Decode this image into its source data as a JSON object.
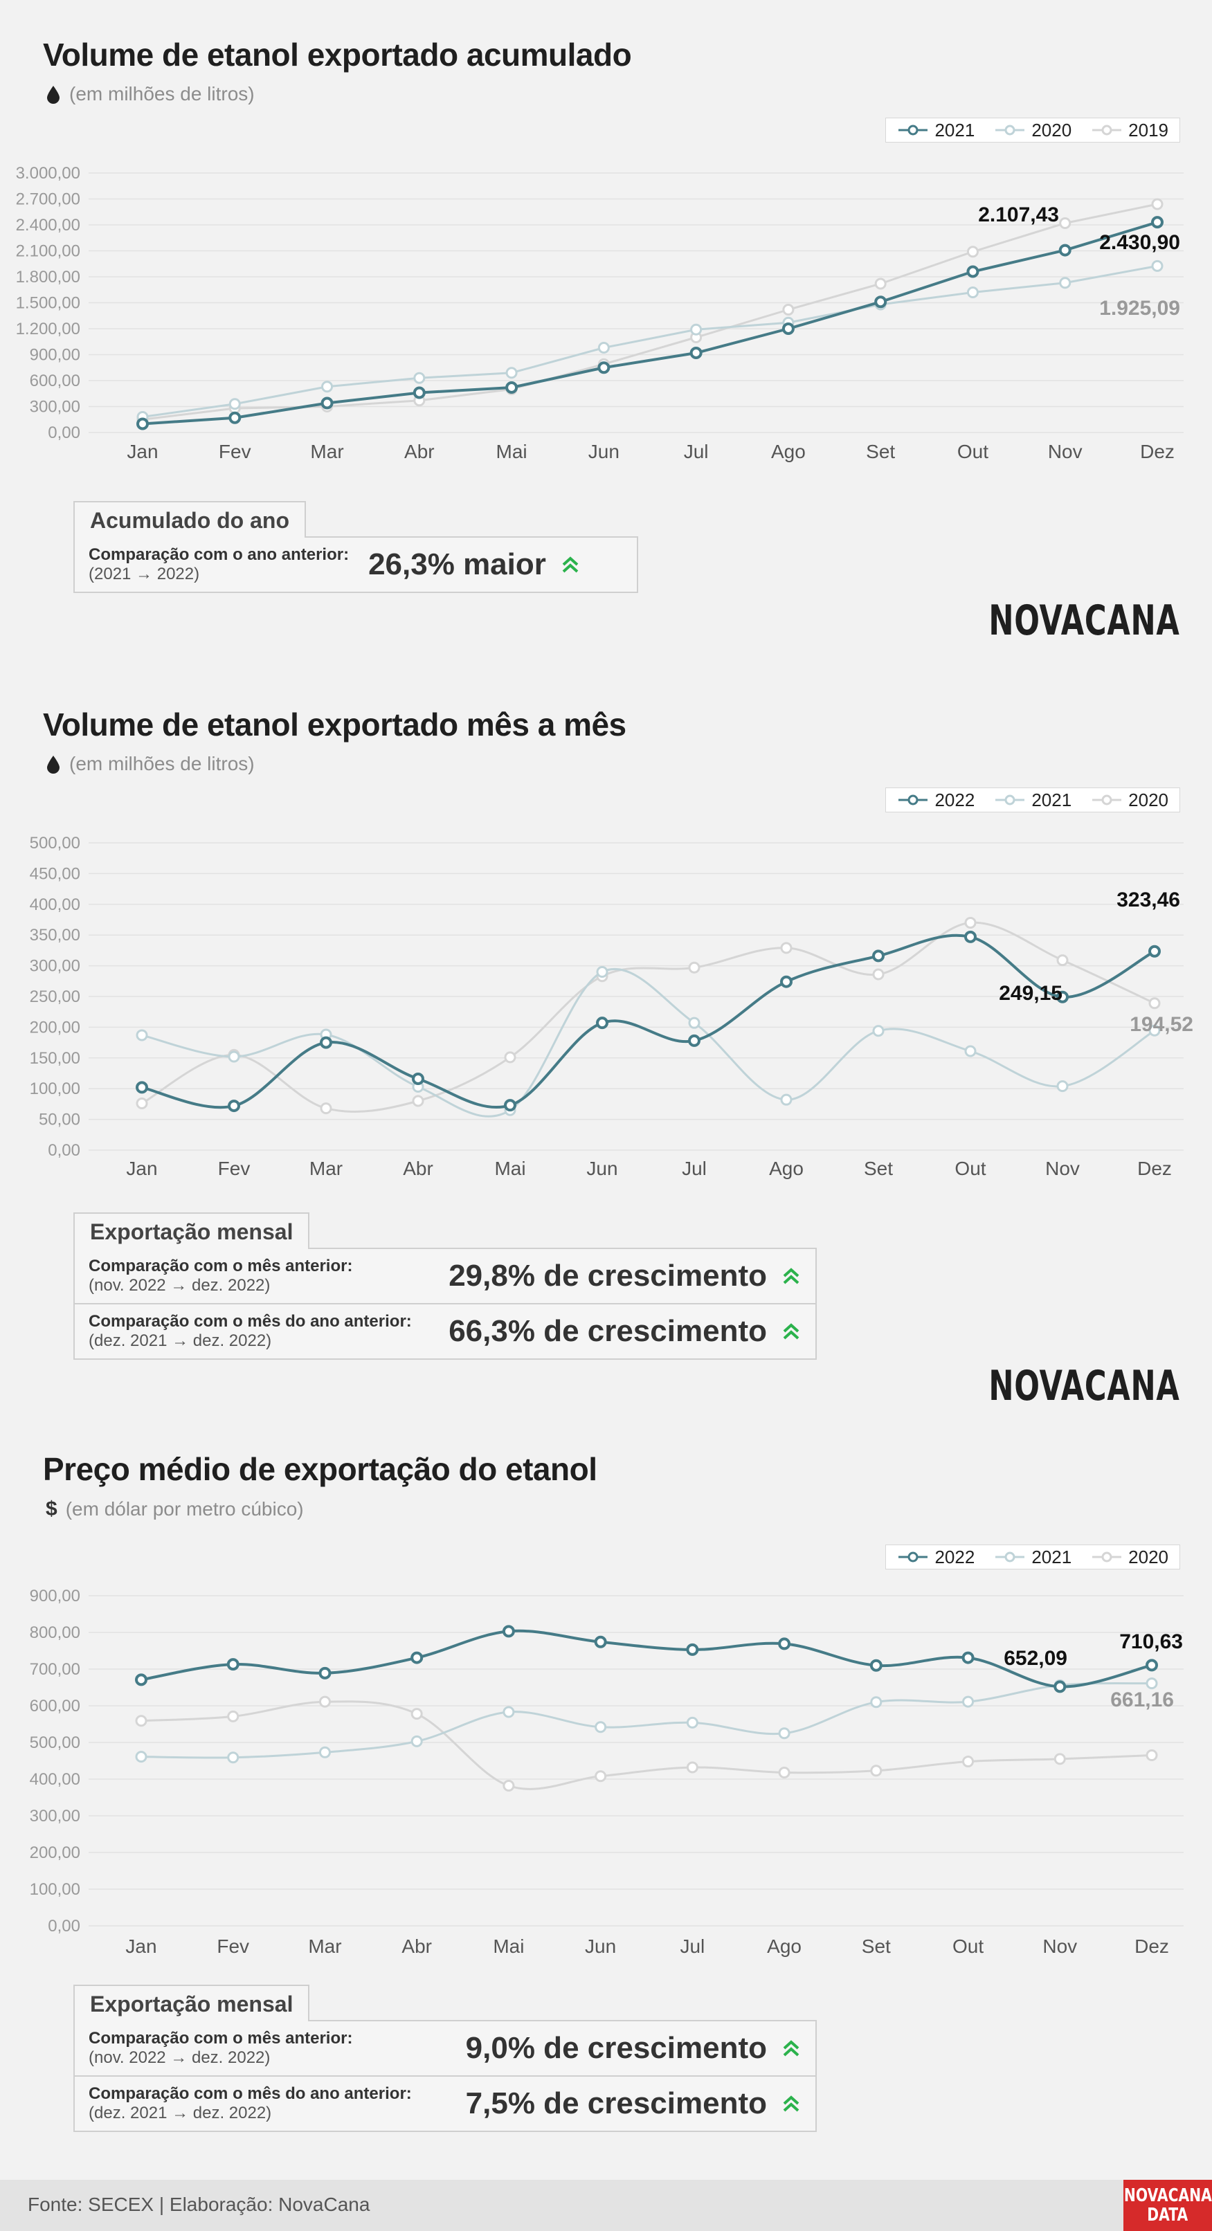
{
  "sections": [
    {
      "title": "Volume de etanol exportado acumulado",
      "subtitle": "(em milhões de litros)",
      "icon": "drop-icon",
      "box": {
        "tab": "Acumulado do ano",
        "rows": [
          {
            "label": "Comparação com o ano anterior:",
            "period": "(2021 → 2022)",
            "value": "26,3% maior"
          }
        ]
      },
      "brand": "NOVACANA"
    },
    {
      "title": "Volume de etanol exportado mês a mês",
      "subtitle": "(em milhões de litros)",
      "icon": "drop-icon",
      "box": {
        "tab": "Exportação mensal",
        "rows": [
          {
            "label": "Comparação com o mês anterior:",
            "period": "(nov. 2022 → dez. 2022)",
            "value": "29,8% de crescimento"
          },
          {
            "label": "Comparação com o mês do ano anterior:",
            "period": "(dez. 2021 → dez. 2022)",
            "value": "66,3% de crescimento"
          }
        ]
      },
      "brand": "NOVACANA"
    },
    {
      "title": "Preço médio de exportação do etanol",
      "subtitle": "(em dólar por metro cúbico)",
      "icon": "$",
      "box": {
        "tab": "Exportação mensal",
        "rows": [
          {
            "label": "Comparação com o mês anterior:",
            "period": "(nov. 2022 → dez. 2022)",
            "value": "9,0% de crescimento"
          },
          {
            "label": "Comparação com o mês do ano anterior:",
            "period": "(dez. 2021 → dez. 2022)",
            "value": "7,5% de crescimento"
          }
        ]
      }
    }
  ],
  "footer": {
    "source": "Fonte: SECEX | Elaboração: NovaCana",
    "logo_line1": "NOVACANA",
    "logo_line2": "DATA"
  },
  "colors": {
    "primary": "#457b87",
    "secondary": "#bfd3d8",
    "tertiary": "#d5d5d5",
    "arrow_up": "#2bb24c"
  },
  "chart_data": [
    {
      "type": "line",
      "categories": [
        "Jan",
        "Fev",
        "Mar",
        "Abr",
        "Mai",
        "Jun",
        "Jul",
        "Ago",
        "Set",
        "Out",
        "Nov",
        "Dez"
      ],
      "ylim": [
        0,
        3000
      ],
      "yticks": [
        "0,00",
        "300,00",
        "600,00",
        "900,00",
        "1.200,00",
        "1.500,00",
        "1.800,00",
        "2.100,00",
        "2.400,00",
        "2.700,00",
        "3.000,00"
      ],
      "legend": [
        "2021",
        "2020",
        "2019"
      ],
      "series": [
        {
          "name": "2021",
          "values": [
            100,
            170,
            340,
            460,
            520,
            750,
            920,
            1200,
            1510,
            1860,
            2107.43,
            2430.9
          ]
        },
        {
          "name": "2020",
          "values": [
            180,
            330,
            530,
            630,
            690,
            980,
            1190,
            1270,
            1480,
            1620,
            1730,
            1925.09
          ]
        },
        {
          "name": "2019",
          "values": [
            150,
            280,
            300,
            370,
            500,
            790,
            1100,
            1420,
            1720,
            2090,
            2420,
            2640
          ]
        }
      ],
      "labels": [
        "2.107,43",
        "2.430,90",
        "1.925,09"
      ]
    },
    {
      "type": "line",
      "categories": [
        "Jan",
        "Fev",
        "Mar",
        "Abr",
        "Mai",
        "Jun",
        "Jul",
        "Ago",
        "Set",
        "Out",
        "Nov",
        "Dez"
      ],
      "ylim": [
        0,
        500
      ],
      "yticks": [
        "0,00",
        "50,00",
        "100,00",
        "150,00",
        "200,00",
        "250,00",
        "300,00",
        "350,00",
        "400,00",
        "450,00",
        "500,00"
      ],
      "legend": [
        "2022",
        "2021",
        "2020"
      ],
      "series": [
        {
          "name": "2022",
          "values": [
            102,
            72,
            175,
            116,
            73,
            207,
            178,
            274,
            316,
            347,
            249.15,
            323.46
          ]
        },
        {
          "name": "2021",
          "values": [
            187,
            152,
            188,
            103,
            65,
            290,
            207,
            82,
            194,
            161,
            104,
            194.52
          ]
        },
        {
          "name": "2020",
          "values": [
            76,
            155,
            68,
            80,
            151,
            283,
            297,
            329,
            286,
            370,
            309,
            239
          ]
        }
      ],
      "labels": [
        "323,46",
        "249,15",
        "194,52"
      ]
    },
    {
      "type": "line",
      "categories": [
        "Jan",
        "Fev",
        "Mar",
        "Abr",
        "Mai",
        "Jun",
        "Jul",
        "Ago",
        "Set",
        "Out",
        "Nov",
        "Dez"
      ],
      "ylim": [
        0,
        900
      ],
      "yticks": [
        "0,00",
        "100,00",
        "200,00",
        "300,00",
        "400,00",
        "500,00",
        "600,00",
        "700,00",
        "800,00",
        "900,00"
      ],
      "legend": [
        "2022",
        "2021",
        "2020"
      ],
      "series": [
        {
          "name": "2022",
          "values": [
            671,
            713,
            689,
            731,
            803,
            774,
            753,
            769,
            710,
            731,
            652.09,
            710.63
          ]
        },
        {
          "name": "2021",
          "values": [
            461,
            459,
            473,
            503,
            583,
            542,
            554,
            525,
            610,
            611,
            656,
            661.16
          ]
        },
        {
          "name": "2020",
          "values": [
            559,
            571,
            611,
            578,
            382,
            408,
            432,
            418,
            423,
            448,
            455,
            465
          ]
        }
      ],
      "labels": [
        "710,63",
        "652,09",
        "661,16"
      ]
    }
  ]
}
